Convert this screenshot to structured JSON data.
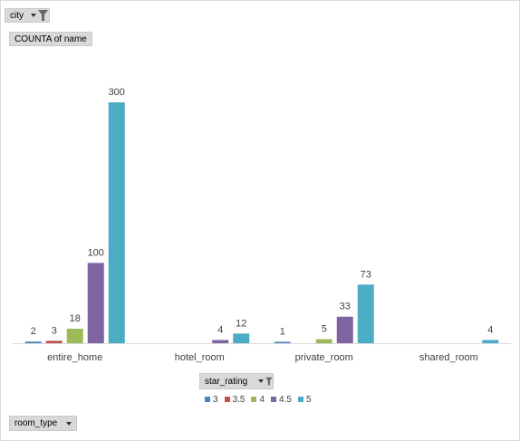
{
  "filters": {
    "city": {
      "label": "city"
    },
    "measure": {
      "label": "COUNTA of name"
    },
    "legend_field": {
      "label": "star_rating"
    },
    "axis_field": {
      "label": "room_type"
    }
  },
  "chart_data": {
    "type": "bar",
    "categories": [
      "entire_home",
      "hotel_room",
      "private_room",
      "shared_room"
    ],
    "series": [
      {
        "name": "3",
        "color": "#4f81bd",
        "values": [
          2,
          null,
          1,
          null
        ]
      },
      {
        "name": "3.5",
        "color": "#c0504d",
        "values": [
          3,
          null,
          null,
          null
        ]
      },
      {
        "name": "4",
        "color": "#9bbb59",
        "values": [
          18,
          null,
          5,
          null
        ]
      },
      {
        "name": "4.5",
        "color": "#8064a2",
        "values": [
          100,
          4,
          33,
          null
        ]
      },
      {
        "name": "5",
        "color": "#4bacc6",
        "values": [
          300,
          12,
          73,
          4
        ]
      }
    ],
    "title": "",
    "xlabel": "",
    "ylabel": "",
    "ylim": [
      0,
      300
    ],
    "grid": false,
    "legend_position": "bottom",
    "data_labels": true
  }
}
